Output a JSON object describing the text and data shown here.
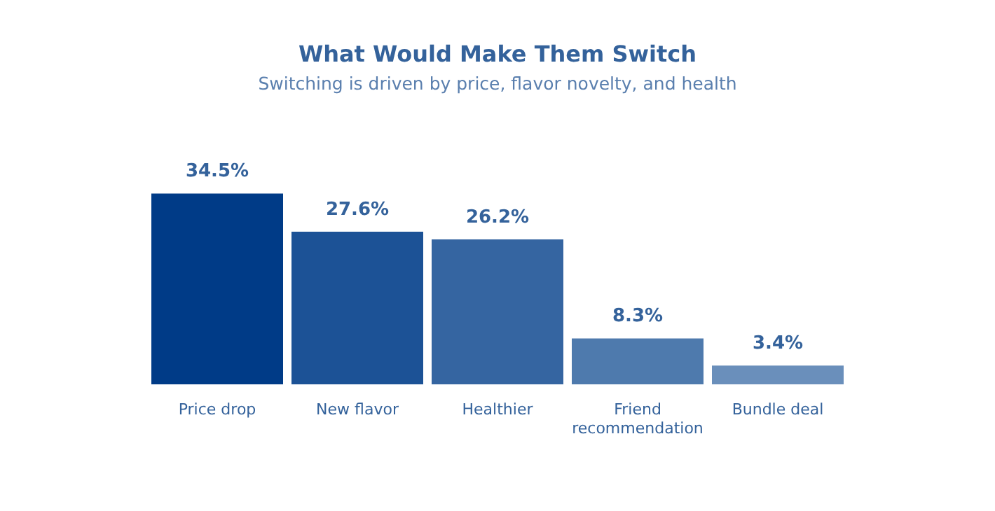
{
  "chart_data": {
    "type": "bar",
    "title": "What Would Make Them Switch",
    "subtitle": "Switching is driven by price, flavor novelty, and health",
    "categories": [
      "Price drop",
      "New flavor",
      "Healthier",
      "Friend recommendation",
      "Bundle deal"
    ],
    "values": [
      34.5,
      27.6,
      26.2,
      8.3,
      3.4
    ],
    "colors": [
      "#003b87",
      "#1c5296",
      "#3565a1",
      "#4e7aad",
      "#6a8fbb"
    ],
    "value_labels": [
      "34.5%",
      "27.6%",
      "26.2%",
      "8.3%",
      "3.4%"
    ],
    "grid": false,
    "legend": false
  }
}
